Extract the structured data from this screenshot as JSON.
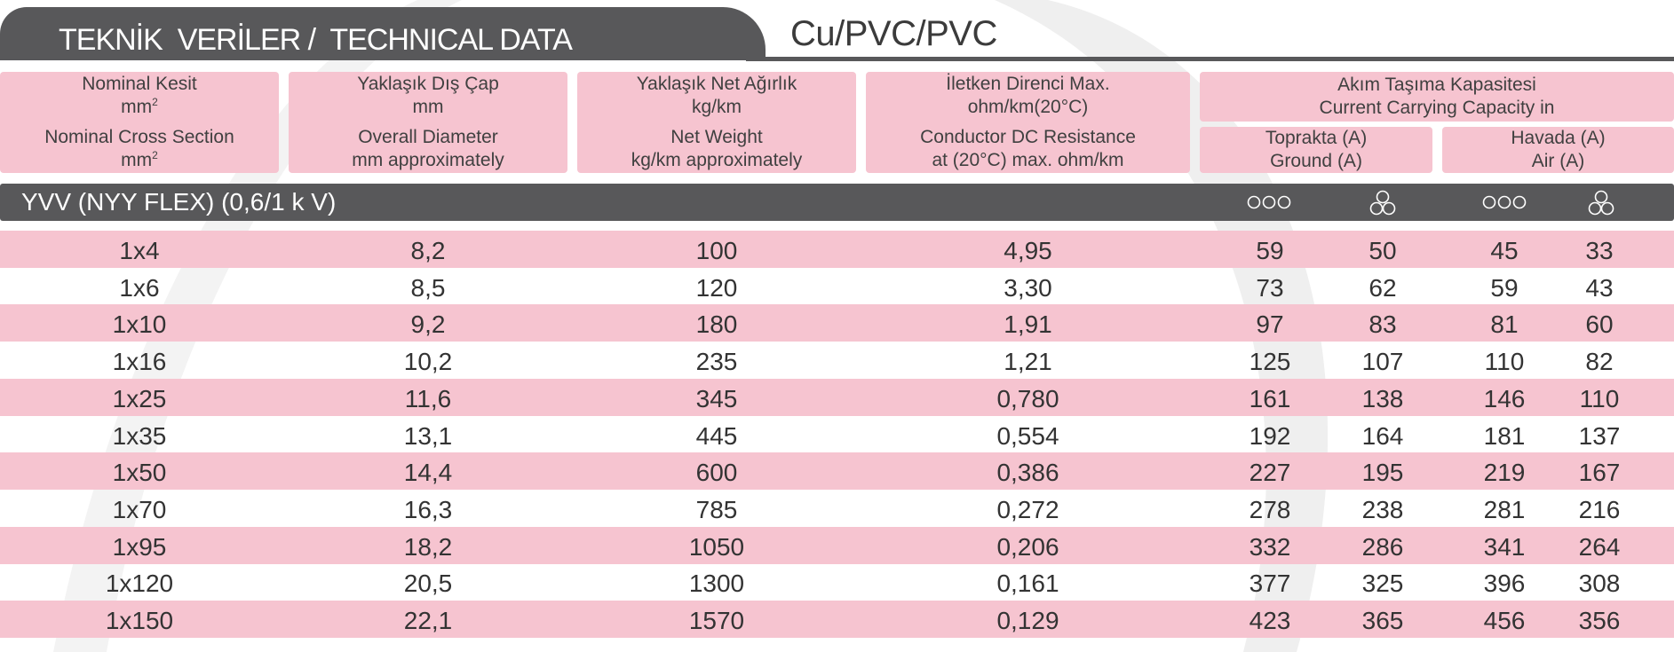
{
  "header": {
    "title": "TEKNİK  VERİLER /  TECHNICAL DATA",
    "subtitle": "Cu/PVC/PVC"
  },
  "columns": {
    "section": {
      "tr": "Nominal Kesit",
      "tr_unit": "mm",
      "en": "Nominal Cross Section",
      "en_unit": "mm",
      "sup": "2"
    },
    "diameter": {
      "tr": "Yaklaşık Dış Çap",
      "tr_unit": "mm",
      "en": "Overall Diameter",
      "en_unit": "mm approximately"
    },
    "weight": {
      "tr": "Yaklaşık Net  Ağırlık",
      "tr_unit": "kg/km",
      "en": "Net Weight",
      "en_unit": "kg/km approximately"
    },
    "resistance": {
      "tr": "İletken Direnci Max.",
      "tr_unit": "ohm/km(20°C)",
      "en": "Conductor DC Resistance",
      "en_unit": "at (20°C) max. ohm/km"
    },
    "capacity": {
      "tr": "Akım Taşıma Kapasitesi",
      "en": "Current Carrying Capacity in"
    },
    "ground": {
      "tr": "Toprakta (A)",
      "en": "Ground (A)"
    },
    "air": {
      "tr": "Havada (A)",
      "en": "Air (A)"
    }
  },
  "section_bar": {
    "title": "YVV (NYY FLEX) (0,6/1 k V)",
    "icons": [
      "flat-formation-icon",
      "trefoil-formation-icon",
      "flat-formation-icon",
      "trefoil-formation-icon"
    ]
  },
  "rows": [
    {
      "size": "1x4",
      "diameter": "8,2",
      "weight": "100",
      "resistance": "4,95",
      "ground_flat": "59",
      "ground_trefoil": "50",
      "air_flat": "45",
      "air_trefoil": "33"
    },
    {
      "size": "1x6",
      "diameter": "8,5",
      "weight": "120",
      "resistance": "3,30",
      "ground_flat": "73",
      "ground_trefoil": "62",
      "air_flat": "59",
      "air_trefoil": "43"
    },
    {
      "size": "1x10",
      "diameter": "9,2",
      "weight": "180",
      "resistance": "1,91",
      "ground_flat": "97",
      "ground_trefoil": "83",
      "air_flat": "81",
      "air_trefoil": "60"
    },
    {
      "size": "1x16",
      "diameter": "10,2",
      "weight": "235",
      "resistance": "1,21",
      "ground_flat": "125",
      "ground_trefoil": "107",
      "air_flat": "110",
      "air_trefoil": "82"
    },
    {
      "size": "1x25",
      "diameter": "11,6",
      "weight": "345",
      "resistance": "0,780",
      "ground_flat": "161",
      "ground_trefoil": "138",
      "air_flat": "146",
      "air_trefoil": "110"
    },
    {
      "size": "1x35",
      "diameter": "13,1",
      "weight": "445",
      "resistance": "0,554",
      "ground_flat": "192",
      "ground_trefoil": "164",
      "air_flat": "181",
      "air_trefoil": "137"
    },
    {
      "size": "1x50",
      "diameter": "14,4",
      "weight": "600",
      "resistance": "0,386",
      "ground_flat": "227",
      "ground_trefoil": "195",
      "air_flat": "219",
      "air_trefoil": "167"
    },
    {
      "size": "1x70",
      "diameter": "16,3",
      "weight": "785",
      "resistance": "0,272",
      "ground_flat": "278",
      "ground_trefoil": "238",
      "air_flat": "281",
      "air_trefoil": "216"
    },
    {
      "size": "1x95",
      "diameter": "18,2",
      "weight": "1050",
      "resistance": "0,206",
      "ground_flat": "332",
      "ground_trefoil": "286",
      "air_flat": "341",
      "air_trefoil": "264"
    },
    {
      "size": "1x120",
      "diameter": "20,5",
      "weight": "1300",
      "resistance": "0,161",
      "ground_flat": "377",
      "ground_trefoil": "325",
      "air_flat": "396",
      "air_trefoil": "308"
    },
    {
      "size": "1x150",
      "diameter": "22,1",
      "weight": "1570",
      "resistance": "0,129",
      "ground_flat": "423",
      "ground_trefoil": "365",
      "air_flat": "456",
      "air_trefoil": "356"
    }
  ],
  "colors": {
    "accent_pink": "#f6c4d0",
    "dark_gray": "#58585a",
    "text": "#333333"
  }
}
